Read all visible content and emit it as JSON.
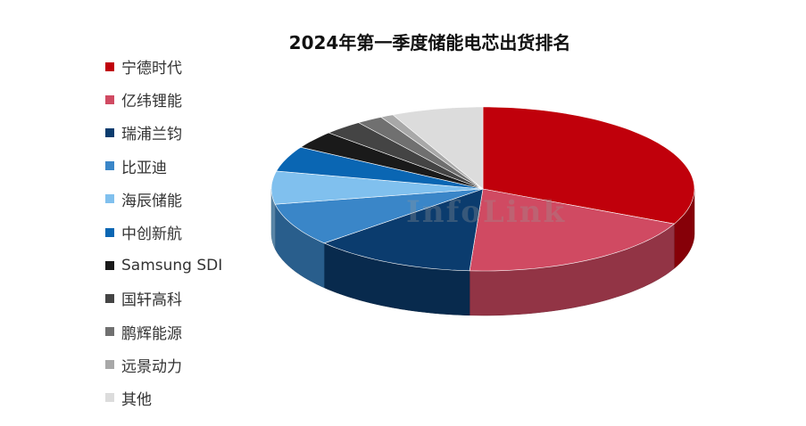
{
  "chart_data": {
    "type": "pie",
    "title": "2024年第一季度储能电芯出货排名",
    "legend_position": "left",
    "watermark": "InfoLink",
    "slices": [
      {
        "label": "宁德时代",
        "value": 32.0,
        "color": "#c0000b"
      },
      {
        "label": "亿纬锂能",
        "value": 19.0,
        "color": "#d04a62"
      },
      {
        "label": "瑞浦兰钧",
        "value": 12.5,
        "color": "#0b3c6e"
      },
      {
        "label": "比亚迪",
        "value": 8.5,
        "color": "#3a86c8"
      },
      {
        "label": "海辰储能",
        "value": 6.5,
        "color": "#80c0ee"
      },
      {
        "label": "中创新航",
        "value": 5.0,
        "color": "#0a66b3"
      },
      {
        "label": "Samsung SDI",
        "value": 3.5,
        "color": "#1a1a1a"
      },
      {
        "label": "国轩高科",
        "value": 3.0,
        "color": "#444444"
      },
      {
        "label": "鹏辉能源",
        "value": 2.0,
        "color": "#707070"
      },
      {
        "label": "远景动力",
        "value": 1.0,
        "color": "#a8a8a8"
      },
      {
        "label": "其他",
        "value": 7.0,
        "color": "#dcdcdc"
      }
    ]
  }
}
